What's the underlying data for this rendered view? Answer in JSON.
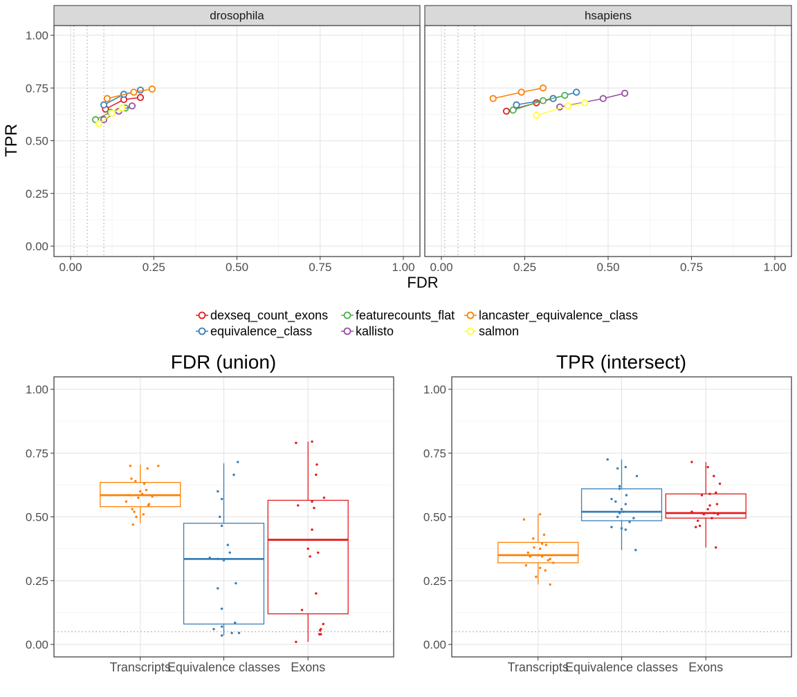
{
  "chart_data": [
    {
      "type": "line",
      "facets": [
        "drosophila",
        "hsapiens"
      ],
      "xlabel": "FDR",
      "ylabel": "TPR",
      "xlim": [
        0,
        1
      ],
      "ylim": [
        0,
        1
      ],
      "xticks": [
        "0.00",
        "0.25",
        "0.50",
        "0.75",
        "1.00"
      ],
      "yticks": [
        "0.00",
        "0.25",
        "0.50",
        "0.75",
        "1.00"
      ],
      "fdr_thresholds": [
        0.01,
        0.05,
        0.1
      ],
      "grid": true,
      "legend_position": "bottom",
      "series": [
        {
          "name": "dexseq_count_exons",
          "color": "#e41a1c",
          "drosophila": [
            [
              0.105,
              0.65
            ],
            [
              0.16,
              0.695
            ],
            [
              0.21,
              0.705
            ]
          ],
          "hsapiens": [
            [
              0.195,
              0.64
            ],
            [
              0.285,
              0.68
            ],
            [
              0.335,
              0.7
            ]
          ]
        },
        {
          "name": "equivalence_class",
          "color": "#377eb8",
          "drosophila": [
            [
              0.1,
              0.67
            ],
            [
              0.16,
              0.72
            ],
            [
              0.21,
              0.74
            ]
          ],
          "hsapiens": [
            [
              0.225,
              0.67
            ],
            [
              0.335,
              0.7
            ],
            [
              0.405,
              0.73
            ]
          ]
        },
        {
          "name": "featurecounts_flat",
          "color": "#4daf4a",
          "drosophila": [
            [
              0.075,
              0.6
            ],
            [
              0.12,
              0.635
            ],
            [
              0.165,
              0.655
            ]
          ],
          "hsapiens": [
            [
              0.215,
              0.645
            ],
            [
              0.305,
              0.69
            ],
            [
              0.37,
              0.715
            ]
          ]
        },
        {
          "name": "kallisto",
          "color": "#984ea3",
          "drosophila": [
            [
              0.1,
              0.6
            ],
            [
              0.145,
              0.64
            ],
            [
              0.185,
              0.665
            ]
          ],
          "hsapiens": [
            [
              0.355,
              0.66
            ],
            [
              0.485,
              0.7
            ],
            [
              0.55,
              0.725
            ]
          ]
        },
        {
          "name": "lancaster_equivalence_class",
          "color": "#ff7f00",
          "drosophila": [
            [
              0.11,
              0.7
            ],
            [
              0.19,
              0.73
            ],
            [
              0.245,
              0.745
            ]
          ],
          "hsapiens": [
            [
              0.155,
              0.7
            ],
            [
              0.24,
              0.73
            ],
            [
              0.305,
              0.75
            ]
          ]
        },
        {
          "name": "salmon",
          "color": "#ffff33",
          "drosophila": [
            [
              0.085,
              0.58
            ],
            [
              0.125,
              0.63
            ],
            [
              0.155,
              0.655
            ]
          ],
          "hsapiens": [
            [
              0.285,
              0.62
            ],
            [
              0.38,
              0.665
            ],
            [
              0.43,
              0.68
            ]
          ]
        }
      ]
    },
    {
      "type": "box",
      "title": "FDR (union)",
      "categories": [
        "Transcripts",
        "Equivalence classes",
        "Exons"
      ],
      "ylim": [
        0,
        1
      ],
      "yticks": [
        "0.00",
        "0.25",
        "0.50",
        "0.75",
        "1.00"
      ],
      "reference_line": 0.05,
      "grid": true,
      "boxes": [
        {
          "category": "Transcripts",
          "color": "#ff7f00",
          "whisker_low": 0.475,
          "q1": 0.54,
          "median": 0.585,
          "q3": 0.635,
          "whisker_high": 0.705,
          "points": [
            [
              -0.25,
              0.7
            ],
            [
              0.1,
              0.63
            ],
            [
              -0.12,
              0.64
            ],
            [
              0.18,
              0.69
            ],
            [
              -0.3,
              0.585
            ],
            [
              0.05,
              0.59
            ],
            [
              -0.05,
              0.575
            ],
            [
              0.22,
              0.55
            ],
            [
              -0.2,
              0.53
            ],
            [
              0.2,
              0.545
            ],
            [
              -0.1,
              0.5
            ],
            [
              -0.18,
              0.47
            ],
            [
              0.0,
              0.6
            ],
            [
              0.15,
              0.605
            ],
            [
              -0.35,
              0.56
            ],
            [
              0.3,
              0.58
            ],
            [
              -0.22,
              0.65
            ],
            [
              0.08,
              0.51
            ],
            [
              0.45,
              0.7
            ],
            [
              -0.15,
              0.52
            ]
          ]
        },
        {
          "category": "Equivalence classes",
          "color": "#377eb8",
          "whisker_low": 0.035,
          "q1": 0.08,
          "median": 0.335,
          "q3": 0.475,
          "whisker_high": 0.71,
          "points": [
            [
              0.35,
              0.715
            ],
            [
              0.25,
              0.665
            ],
            [
              -0.15,
              0.6
            ],
            [
              -0.05,
              0.57
            ],
            [
              -0.1,
              0.5
            ],
            [
              -0.05,
              0.465
            ],
            [
              0.15,
              0.36
            ],
            [
              -0.35,
              0.34
            ],
            [
              -0.15,
              0.335
            ],
            [
              0.3,
              0.24
            ],
            [
              -0.15,
              0.22
            ],
            [
              -0.05,
              0.14
            ],
            [
              0.28,
              0.085
            ],
            [
              -0.25,
              0.06
            ],
            [
              -0.05,
              0.07
            ],
            [
              0.2,
              0.045
            ],
            [
              0.38,
              0.045
            ],
            [
              -0.05,
              0.035
            ],
            [
              0.0,
              0.33
            ],
            [
              0.1,
              0.39
            ]
          ]
        },
        {
          "category": "Exons",
          "color": "#e41a1c",
          "whisker_low": 0.01,
          "q1": 0.12,
          "median": 0.41,
          "q3": 0.565,
          "whisker_high": 0.795,
          "points": [
            [
              -0.3,
              0.79
            ],
            [
              0.1,
              0.795
            ],
            [
              0.22,
              0.705
            ],
            [
              0.2,
              0.665
            ],
            [
              0.4,
              0.575
            ],
            [
              0.1,
              0.56
            ],
            [
              -0.25,
              0.545
            ],
            [
              0.15,
              0.535
            ],
            [
              0.1,
              0.45
            ],
            [
              0.0,
              0.375
            ],
            [
              0.25,
              0.36
            ],
            [
              0.05,
              0.345
            ],
            [
              0.2,
              0.2
            ],
            [
              -0.15,
              0.135
            ],
            [
              0.38,
              0.08
            ],
            [
              0.32,
              0.06
            ],
            [
              0.28,
              0.04
            ],
            [
              0.32,
              0.04
            ],
            [
              -0.3,
              0.01
            ],
            [
              0.3,
              0.055
            ]
          ]
        }
      ]
    },
    {
      "type": "box",
      "title": "TPR (intersect)",
      "categories": [
        "Transcripts",
        "Equivalence classes",
        "Exons"
      ],
      "ylim": [
        0,
        1
      ],
      "yticks": [
        "0.00",
        "0.25",
        "0.50",
        "0.75",
        "1.00"
      ],
      "reference_line": 0.05,
      "grid": true,
      "boxes": [
        {
          "category": "Transcripts",
          "color": "#ff7f00",
          "whisker_low": 0.235,
          "q1": 0.32,
          "median": 0.35,
          "q3": 0.4,
          "whisker_high": 0.51,
          "points": [
            [
              0.05,
              0.51
            ],
            [
              -0.35,
              0.49
            ],
            [
              0.15,
              0.43
            ],
            [
              -0.12,
              0.415
            ],
            [
              0.05,
              0.375
            ],
            [
              0.1,
              0.395
            ],
            [
              0.2,
              0.39
            ],
            [
              0.3,
              0.335
            ],
            [
              0.1,
              0.345
            ],
            [
              0.0,
              0.35
            ],
            [
              -0.2,
              0.345
            ],
            [
              0.25,
              0.33
            ],
            [
              -0.3,
              0.31
            ],
            [
              0.18,
              0.29
            ],
            [
              0.38,
              0.32
            ],
            [
              -0.05,
              0.265
            ],
            [
              0.3,
              0.235
            ],
            [
              -0.25,
              0.36
            ],
            [
              0.05,
              0.3
            ],
            [
              -0.1,
              0.38
            ]
          ]
        },
        {
          "category": "Equivalence classes",
          "color": "#377eb8",
          "whisker_low": 0.37,
          "q1": 0.485,
          "median": 0.52,
          "q3": 0.61,
          "whisker_high": 0.725,
          "points": [
            [
              -0.35,
              0.725
            ],
            [
              0.1,
              0.695
            ],
            [
              -0.1,
              0.69
            ],
            [
              0.38,
              0.66
            ],
            [
              -0.05,
              0.61
            ],
            [
              -0.05,
              0.62
            ],
            [
              -0.25,
              0.57
            ],
            [
              0.1,
              0.55
            ],
            [
              0.0,
              0.53
            ],
            [
              -0.1,
              0.5
            ],
            [
              -0.05,
              0.515
            ],
            [
              0.2,
              0.48
            ],
            [
              -0.25,
              0.46
            ],
            [
              0.0,
              0.455
            ],
            [
              0.1,
              0.45
            ],
            [
              0.35,
              0.37
            ],
            [
              0.3,
              0.495
            ],
            [
              0.05,
              0.52
            ],
            [
              -0.15,
              0.56
            ],
            [
              0.12,
              0.585
            ]
          ]
        },
        {
          "category": "Exons",
          "color": "#e41a1c",
          "whisker_low": 0.38,
          "q1": 0.495,
          "median": 0.515,
          "q3": 0.59,
          "whisker_high": 0.715,
          "points": [
            [
              -0.35,
              0.715
            ],
            [
              0.05,
              0.695
            ],
            [
              0.2,
              0.66
            ],
            [
              0.35,
              0.63
            ],
            [
              0.25,
              0.595
            ],
            [
              0.1,
              0.59
            ],
            [
              -0.1,
              0.585
            ],
            [
              0.28,
              0.55
            ],
            [
              0.1,
              0.545
            ],
            [
              0.2,
              0.515
            ],
            [
              -0.35,
              0.52
            ],
            [
              -0.1,
              0.515
            ],
            [
              0.15,
              0.495
            ],
            [
              -0.25,
              0.46
            ],
            [
              -0.15,
              0.465
            ],
            [
              0.25,
              0.38
            ],
            [
              0.3,
              0.51
            ],
            [
              -0.2,
              0.485
            ],
            [
              0.05,
              0.53
            ],
            [
              -0.05,
              0.51
            ]
          ]
        }
      ]
    }
  ]
}
